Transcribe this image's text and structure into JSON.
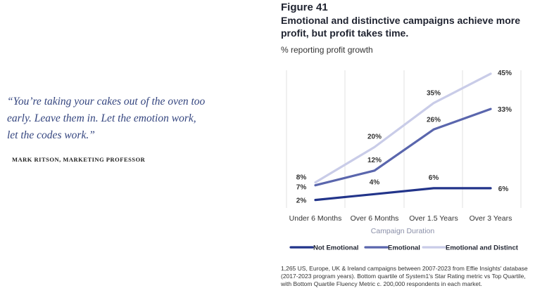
{
  "quote": {
    "lines": [
      "“You’re taking your cakes out of the oven too",
      "early. Leave them in. Let the emotion work,",
      "let the codes work.”"
    ],
    "attribution": "MARK RITSON, MARKETING PROFESSOR"
  },
  "figure": {
    "label": "Figure 41",
    "title": "Emotional and distinctive campaigns achieve more profit, but profit takes time.",
    "footnote": "1,265 US, Europe, UK & Ireland campaigns between 2007-2023 from Effie Insights' database  (2017-2023 program years). Bottom quartile of System1's Star Rating metric vs Top Quartile, with Bottom Quartile Fluency Metric c. 200,000 respondents in each market."
  },
  "chart_data": {
    "type": "line",
    "title": "Emotional and distinctive campaigns achieve more profit, but profit takes time.",
    "ylabel": "% reporting profit growth",
    "xlabel": "Campaign Duration",
    "categories": [
      "Under 6 Months",
      "Over 6 Months",
      "Over 1.5 Years",
      "Over 3 Years"
    ],
    "ylim": [
      0,
      50
    ],
    "grid": "vertical",
    "legend_position": "bottom",
    "series": [
      {
        "name": "Not Emotional",
        "values": [
          2,
          4,
          6,
          6
        ],
        "labels": [
          "2%",
          "4%",
          "6%",
          "6%"
        ],
        "color": "#22348a"
      },
      {
        "name": "Emotional",
        "values": [
          7,
          12,
          26,
          33
        ],
        "labels": [
          "7%",
          "12%",
          "26%",
          "33%"
        ],
        "color": "#5a66ad"
      },
      {
        "name": "Emotional and Distinct",
        "values": [
          8,
          20,
          35,
          45
        ],
        "labels": [
          "8%",
          "20%",
          "35%",
          "45%"
        ],
        "color": "#c9cce8"
      }
    ]
  }
}
